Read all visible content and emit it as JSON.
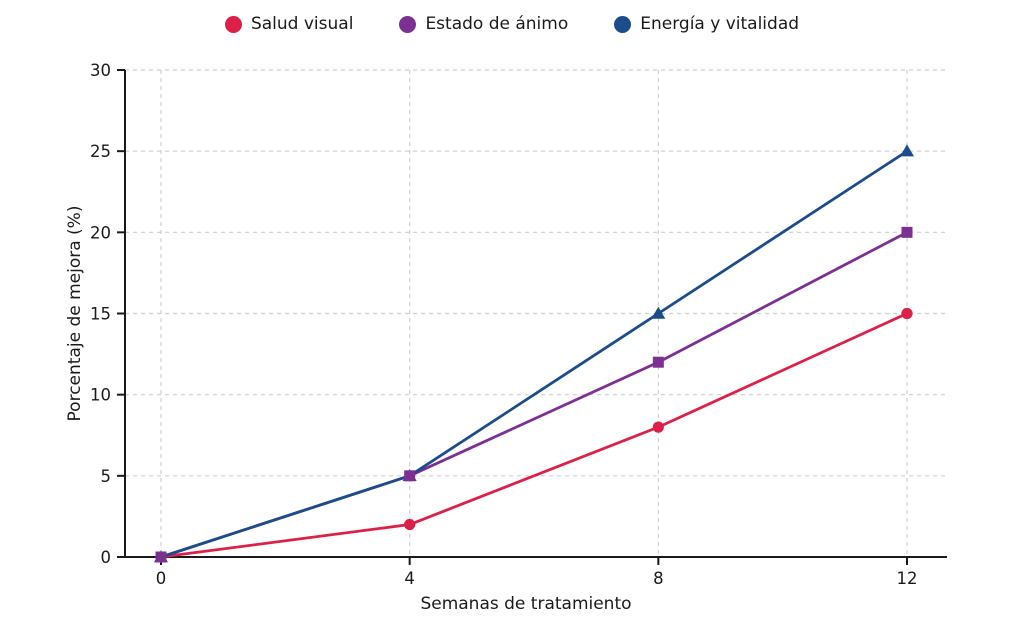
{
  "chart_data": {
    "type": "line",
    "title": "",
    "xlabel": "Semanas de tratamiento",
    "ylabel": "Porcentaje de mejora (%)",
    "x": [
      0,
      4,
      8,
      12
    ],
    "xticks": [
      "0",
      "4",
      "8",
      "12"
    ],
    "yticks": [
      "0",
      "5",
      "10",
      "15",
      "20",
      "25",
      "30"
    ],
    "ytick_values": [
      0,
      5,
      10,
      15,
      20,
      25,
      30
    ],
    "xlim": [
      0,
      12
    ],
    "ylim": [
      0,
      30
    ],
    "grid": true,
    "grid_style": "dashed",
    "legend_position": "top-center",
    "series": [
      {
        "name": "Salud visual",
        "color": "#DC2048",
        "marker": "circle",
        "values": [
          0,
          2,
          8,
          15
        ]
      },
      {
        "name": "Estado de ánimo",
        "color": "#7C3192",
        "marker": "square",
        "values": [
          0,
          5,
          12,
          20
        ]
      },
      {
        "name": "Energía y vitalidad",
        "color": "#1C4C8A",
        "marker": "triangle",
        "values": [
          0,
          5,
          15,
          25
        ]
      }
    ],
    "palette": {
      "grid_color": "#cfcfcf",
      "axis_color": "#1a1a1a",
      "text_color": "#1a1a1a",
      "background": "#ffffff"
    }
  }
}
